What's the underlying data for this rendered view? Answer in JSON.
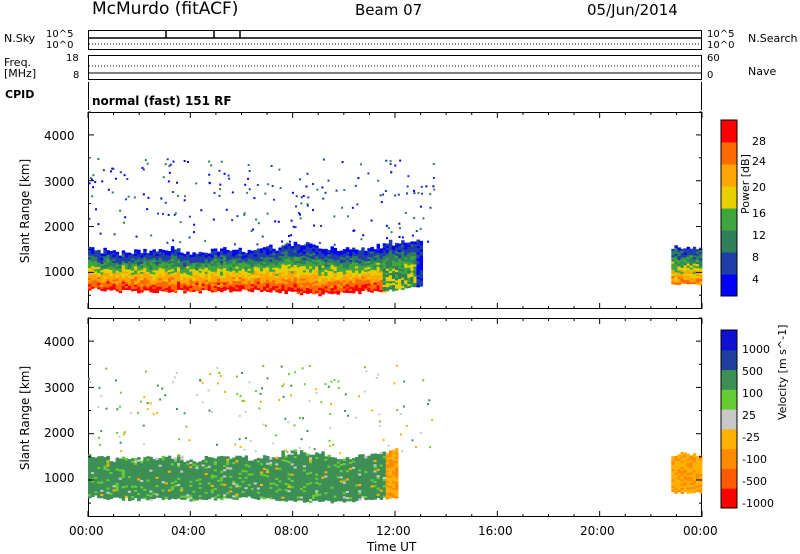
{
  "header": {
    "station": "McMurdo (fitACF)",
    "beam": "Beam 07",
    "date": "05/Jun/2014"
  },
  "side_labels": {
    "nsky": "N.Sky",
    "nsearch": "N.Search",
    "freq_line1": "Freq.",
    "freq_line2": "[MHz]",
    "nave": "Nave",
    "cpid": "CPID",
    "cpid_value": "normal (fast) 151 RF"
  },
  "top_axes": {
    "nsky_ticks": [
      "10^5",
      "10^0"
    ],
    "nsearch_ticks": [
      "10^5",
      "10^0"
    ],
    "freq_ticks": [
      "18",
      "8"
    ],
    "nave_ticks": [
      "60",
      "0"
    ]
  },
  "x_ticks": [
    "00:00",
    "04:00",
    "08:00",
    "12:00",
    "16:00",
    "20:00",
    "00:00"
  ],
  "xlabel": "Time UT",
  "colors": {
    "power_scale": [
      "#0000ff",
      "#1e3ea8",
      "#2e7f5a",
      "#3fa63f",
      "#e8d000",
      "#ffa500",
      "#ff6a00",
      "#ff0000"
    ],
    "velocity_scale": [
      "#ff0000",
      "#ff5a00",
      "#ff8c00",
      "#ffb000",
      "#c8c8c8",
      "#66cc33",
      "#3d8f55",
      "#2040a0",
      "#1010d0"
    ]
  },
  "chart_data": [
    {
      "type": "heatmap",
      "title": "Power",
      "xlabel": "Time UT",
      "ylabel": "Slant Range [km]",
      "xlim": [
        "00:00",
        "24:00"
      ],
      "ylim": [
        200,
        4500
      ],
      "yticks": [
        1000,
        2000,
        3000,
        4000
      ],
      "colorbar": {
        "label": "Power [dB]",
        "ticks": [
          4,
          8,
          12,
          16,
          20,
          24,
          28
        ],
        "range": [
          0,
          32
        ]
      },
      "main_echo_band": {
        "hours": [
          0.0,
          0.5,
          1.0,
          2.0,
          3.0,
          4.0,
          5.0,
          6.0,
          7.0,
          8.0,
          9.0,
          10.0,
          11.0,
          12.0,
          13.0
        ],
        "lower_km": [
          650,
          620,
          600,
          580,
          600,
          580,
          600,
          620,
          600,
          550,
          520,
          560,
          580,
          600,
          700
        ],
        "upper_km": [
          1500,
          1450,
          1400,
          1450,
          1500,
          1400,
          1450,
          1450,
          1500,
          1600,
          1550,
          1450,
          1500,
          1650,
          1700
        ],
        "peak_power_db": 30
      },
      "late_echo_band": {
        "hours": [
          22.8,
          24.0
        ],
        "lower_km": 700,
        "upper_km": 1600
      }
    },
    {
      "type": "heatmap",
      "title": "Velocity",
      "xlabel": "Time UT",
      "ylabel": "Slant Range [km]",
      "xlim": [
        "00:00",
        "24:00"
      ],
      "ylim": [
        200,
        4500
      ],
      "yticks": [
        1000,
        2000,
        3000,
        4000
      ],
      "colorbar": {
        "label": "Velocity [m s^-1]",
        "ticks": [
          -1000,
          -500,
          -100,
          -25,
          25,
          100,
          500,
          1000
        ]
      },
      "main_echo_band": {
        "hours": [
          0.0,
          0.5,
          1.0,
          2.0,
          3.0,
          4.0,
          5.0,
          6.0,
          7.0,
          8.0,
          9.0,
          10.0,
          11.0,
          12.0
        ],
        "lower_km": [
          650,
          620,
          600,
          580,
          600,
          580,
          600,
          620,
          600,
          550,
          520,
          560,
          580,
          600
        ],
        "upper_km": [
          1500,
          1450,
          1400,
          1450,
          1500,
          1400,
          1450,
          1450,
          1500,
          1600,
          1550,
          1450,
          1500,
          1650
        ],
        "typical_velocity_ms": 60
      },
      "late_echo_band": {
        "hours": [
          22.8,
          24.0
        ],
        "lower_km": 700,
        "upper_km": 1600,
        "typical_velocity_ms": -300
      }
    }
  ]
}
